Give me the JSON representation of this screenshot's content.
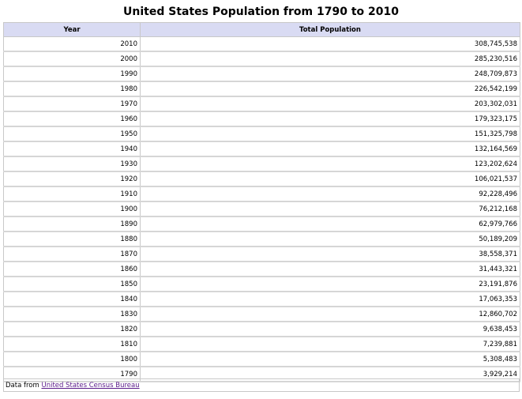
{
  "title": "United States Population from 1790 to 2010",
  "table": {
    "headers": {
      "year": "Year",
      "population": "Total Population"
    },
    "rows": [
      {
        "year": "2010",
        "population": "308,745,538"
      },
      {
        "year": "2000",
        "population": "285,230,516"
      },
      {
        "year": "1990",
        "population": "248,709,873"
      },
      {
        "year": "1980",
        "population": "226,542,199"
      },
      {
        "year": "1970",
        "population": "203,302,031"
      },
      {
        "year": "1960",
        "population": "179,323,175"
      },
      {
        "year": "1950",
        "population": "151,325,798"
      },
      {
        "year": "1940",
        "population": "132,164,569"
      },
      {
        "year": "1930",
        "population": "123,202,624"
      },
      {
        "year": "1920",
        "population": "106,021,537"
      },
      {
        "year": "1910",
        "population": "92,228,496"
      },
      {
        "year": "1900",
        "population": "76,212,168"
      },
      {
        "year": "1890",
        "population": "62,979,766"
      },
      {
        "year": "1880",
        "population": "50,189,209"
      },
      {
        "year": "1870",
        "population": "38,558,371"
      },
      {
        "year": "1860",
        "population": "31,443,321"
      },
      {
        "year": "1850",
        "population": "23,191,876"
      },
      {
        "year": "1840",
        "population": "17,063,353"
      },
      {
        "year": "1830",
        "population": "12,860,702"
      },
      {
        "year": "1820",
        "population": "9,638,453"
      },
      {
        "year": "1810",
        "population": "7,239,881"
      },
      {
        "year": "1800",
        "population": "5,308,483"
      },
      {
        "year": "1790",
        "population": "3,929,214"
      }
    ]
  },
  "footer": {
    "prefix": "Data from",
    "link_text": "United States Census Bureau"
  },
  "colors": {
    "header_bg": "#d9dbf3",
    "link": "#5a1a8a"
  }
}
